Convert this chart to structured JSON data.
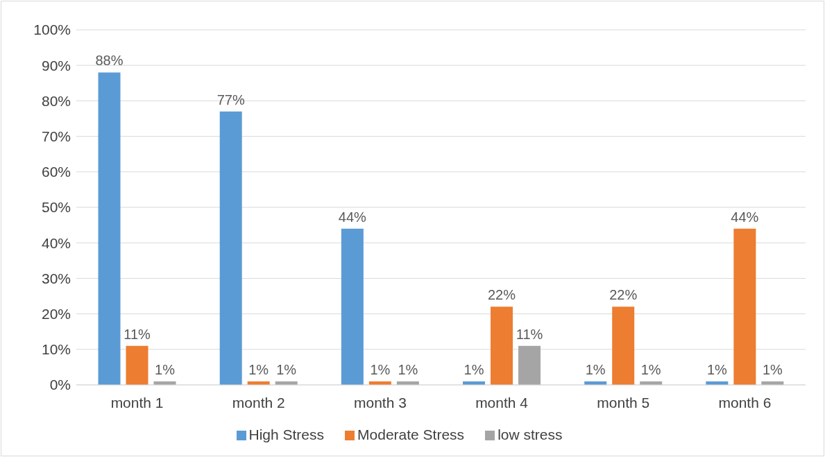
{
  "chart_data": {
    "type": "bar",
    "categories": [
      "month 1",
      "month 2",
      "month 3",
      "month 4",
      "month 5",
      "month 6"
    ],
    "series": [
      {
        "name": "High Stress",
        "color": "#5b9bd5",
        "values": [
          88,
          77,
          44,
          1,
          1,
          1
        ],
        "value_labels": [
          "88%",
          "77%",
          "44%",
          "1%",
          "1%",
          "1%"
        ]
      },
      {
        "name": "Moderate Stress",
        "color": "#ed7d31",
        "values": [
          11,
          1,
          1,
          22,
          22,
          44
        ],
        "value_labels": [
          "11%",
          "1%",
          "1%",
          "22%",
          "22%",
          "44%"
        ]
      },
      {
        "name": "low stress",
        "color": "#a5a5a5",
        "values": [
          1,
          1,
          1,
          11,
          1,
          1
        ],
        "value_labels": [
          "1%",
          "1%",
          "1%",
          "11%",
          "1%",
          "1%"
        ]
      }
    ],
    "ylim": [
      0,
      100
    ],
    "yticks": [
      {
        "value": 0,
        "label": "0%"
      },
      {
        "value": 10,
        "label": "10%"
      },
      {
        "value": 20,
        "label": "20%"
      },
      {
        "value": 30,
        "label": "30%"
      },
      {
        "value": 40,
        "label": "40%"
      },
      {
        "value": 50,
        "label": "50%"
      },
      {
        "value": 60,
        "label": "60%"
      },
      {
        "value": 70,
        "label": "70%"
      },
      {
        "value": 80,
        "label": "80%"
      },
      {
        "value": 90,
        "label": "90%"
      },
      {
        "value": 100,
        "label": "100%"
      }
    ],
    "grid": "y",
    "legend": "bottom"
  }
}
